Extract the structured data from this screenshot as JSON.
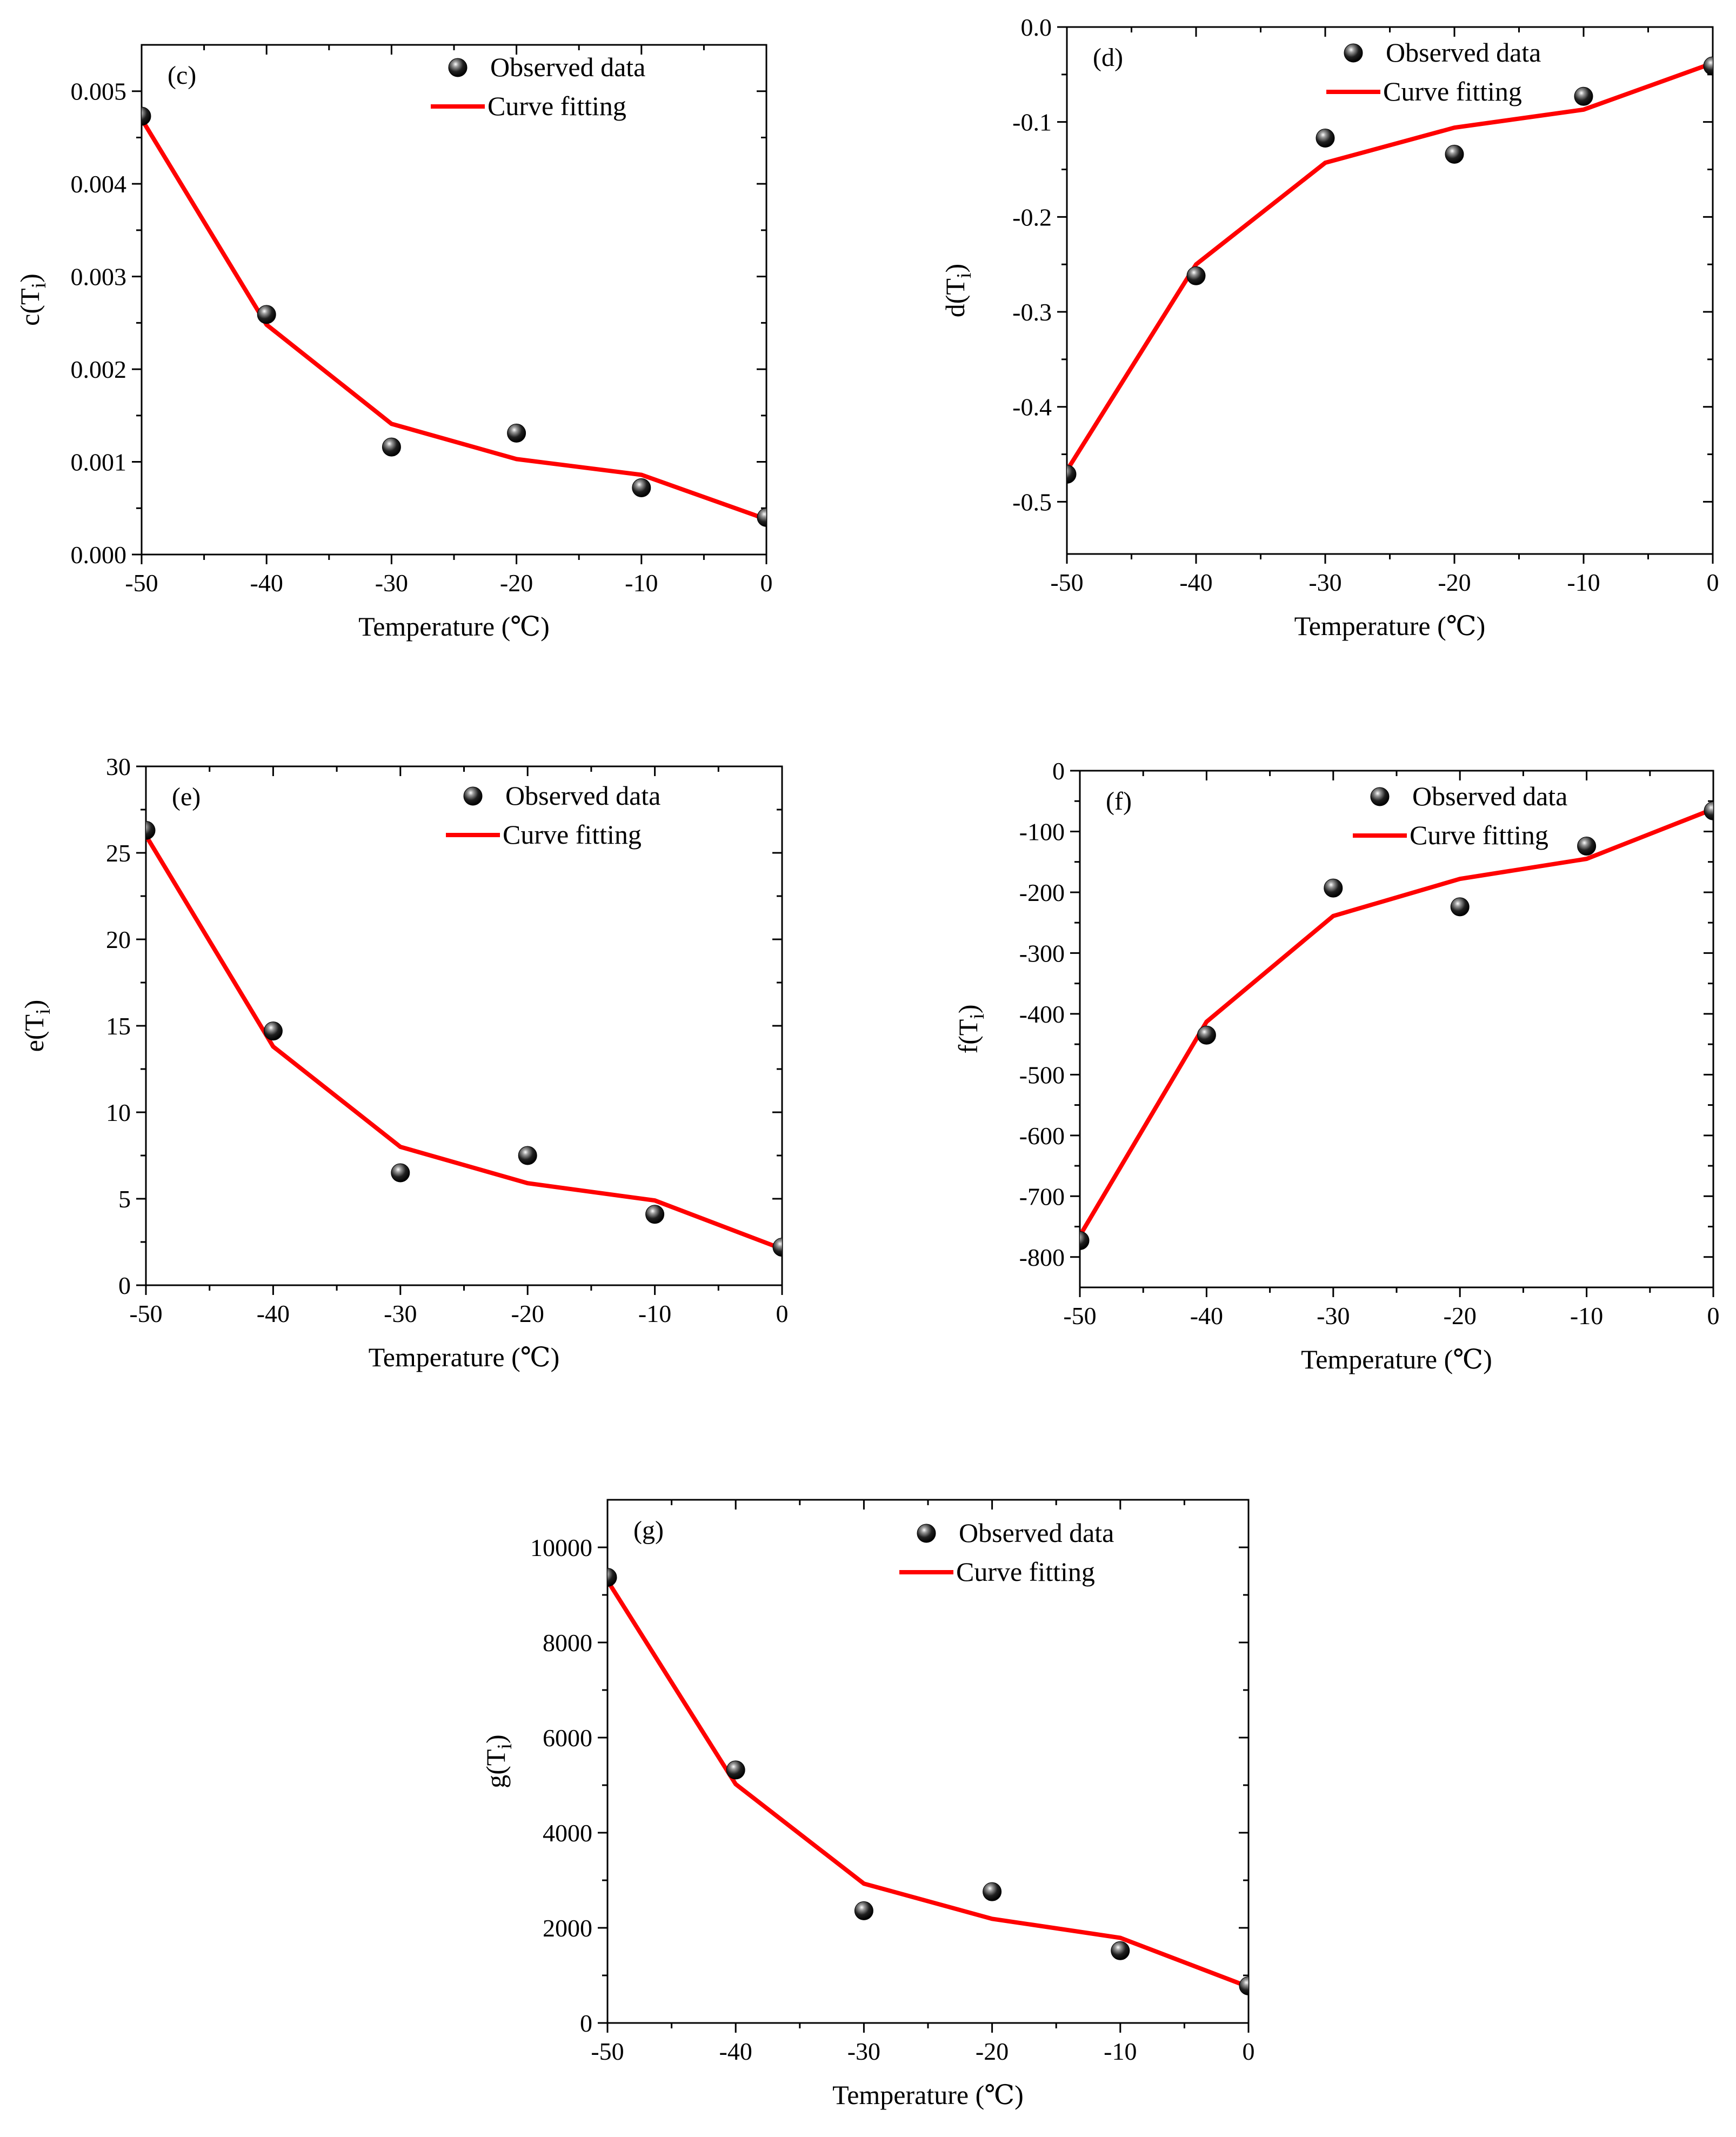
{
  "chart_data": [
    {
      "type": "line",
      "panel_label": "(c)",
      "ylabel_base": "c(T",
      "ylabel_sub": "i",
      "ylabel_close": ")",
      "xlabel": "Temperature (℃)",
      "xlim": [
        -50,
        0
      ],
      "ylim": [
        0,
        0.0055
      ],
      "x_ticks": [
        -50,
        -40,
        -30,
        -20,
        -10,
        0
      ],
      "x_tick_labels": [
        "-50",
        "-40",
        "-30",
        "-20",
        "-10",
        "0"
      ],
      "y_ticks": [
        0,
        0.001,
        0.002,
        0.003,
        0.004,
        0.005
      ],
      "y_tick_labels": [
        "0.000",
        "0.001",
        "0.002",
        "0.003",
        "0.004",
        "0.005"
      ],
      "legend": [
        "Observed data",
        "Curve fitting"
      ],
      "series": [
        {
          "name": "Observed data",
          "kind": "scatter",
          "x": [
            -50,
            -40,
            -30,
            -20,
            -10,
            0
          ],
          "y": [
            0.00473,
            0.00259,
            0.00116,
            0.00131,
            0.00072,
            0.0004
          ]
        },
        {
          "name": "Curve fitting",
          "kind": "line",
          "color": "#ff0000",
          "x": [
            -50,
            -40,
            -30,
            -20,
            -10,
            0
          ],
          "y": [
            0.0047,
            0.00248,
            0.00141,
            0.00103,
            0.00086,
            0.00038
          ]
        }
      ]
    },
    {
      "type": "line",
      "panel_label": "(d)",
      "ylabel_base": "d(T",
      "ylabel_sub": "i",
      "ylabel_close": ")",
      "xlabel": "Temperature (℃)",
      "xlim": [
        -50,
        0
      ],
      "ylim": [
        -0.555,
        0
      ],
      "x_ticks": [
        -50,
        -40,
        -30,
        -20,
        -10,
        0
      ],
      "x_tick_labels": [
        "-50",
        "-40",
        "-30",
        "-20",
        "-10",
        "0"
      ],
      "y_ticks": [
        0,
        -0.1,
        -0.2,
        -0.3,
        -0.4,
        -0.5
      ],
      "y_tick_labels": [
        "0.0",
        "-0.1",
        "-0.2",
        "-0.3",
        "-0.4",
        "-0.5"
      ],
      "legend": [
        "Observed data",
        "Curve fitting"
      ],
      "series": [
        {
          "name": "Observed data",
          "kind": "scatter",
          "x": [
            -50,
            -40,
            -30,
            -20,
            -10,
            0
          ],
          "y": [
            -0.471,
            -0.262,
            -0.117,
            -0.134,
            -0.073,
            -0.041
          ]
        },
        {
          "name": "Curve fitting",
          "kind": "line",
          "color": "#ff0000",
          "x": [
            -50,
            -40,
            -30,
            -20,
            -10,
            0
          ],
          "y": [
            -0.467,
            -0.25,
            -0.143,
            -0.106,
            -0.087,
            -0.038
          ]
        }
      ]
    },
    {
      "type": "line",
      "panel_label": "(e)",
      "ylabel_base": "e(T",
      "ylabel_sub": "i",
      "ylabel_close": ")",
      "xlabel": "Temperature (℃)",
      "xlim": [
        -50,
        0
      ],
      "ylim": [
        0,
        30
      ],
      "x_ticks": [
        -50,
        -40,
        -30,
        -20,
        -10,
        0
      ],
      "x_tick_labels": [
        "-50",
        "-40",
        "-30",
        "-20",
        "-10",
        "0"
      ],
      "y_ticks": [
        0,
        5,
        10,
        15,
        20,
        25,
        30
      ],
      "y_tick_labels": [
        "0",
        "5",
        "10",
        "15",
        "20",
        "25",
        "30"
      ],
      "legend": [
        "Observed data",
        "Curve fitting"
      ],
      "series": [
        {
          "name": "Observed data",
          "kind": "scatter",
          "x": [
            -50,
            -40,
            -30,
            -20,
            -10,
            0
          ],
          "y": [
            26.3,
            14.7,
            6.5,
            7.5,
            4.1,
            2.2
          ]
        },
        {
          "name": "Curve fitting",
          "kind": "line",
          "color": "#ff0000",
          "x": [
            -50,
            -40,
            -30,
            -20,
            -10,
            0
          ],
          "y": [
            26.0,
            13.8,
            8.0,
            5.9,
            4.9,
            2.1
          ]
        }
      ]
    },
    {
      "type": "line",
      "panel_label": "(f)",
      "ylabel_base": "f(T",
      "ylabel_sub": "i",
      "ylabel_close": ")",
      "xlabel": "Temperature (℃)",
      "xlim": [
        -50,
        0
      ],
      "ylim": [
        -850,
        0
      ],
      "x_ticks": [
        -50,
        -40,
        -30,
        -20,
        -10,
        0
      ],
      "x_tick_labels": [
        "-50",
        "-40",
        "-30",
        "-20",
        "-10",
        "0"
      ],
      "y_ticks": [
        0,
        -100,
        -200,
        -300,
        -400,
        -500,
        -600,
        -700,
        -800
      ],
      "y_tick_labels": [
        "0",
        "-100",
        "-200",
        "-300",
        "-400",
        "-500",
        "-600",
        "-700",
        "-800"
      ],
      "legend": [
        "Observed data",
        "Curve fitting"
      ],
      "series": [
        {
          "name": "Observed data",
          "kind": "scatter",
          "x": [
            -50,
            -40,
            -30,
            -20,
            -10,
            0
          ],
          "y": [
            -773,
            -435,
            -193,
            -224,
            -124,
            -66
          ]
        },
        {
          "name": "Curve fitting",
          "kind": "line",
          "color": "#ff0000",
          "x": [
            -50,
            -40,
            -30,
            -20,
            -10,
            0
          ],
          "y": [
            -765,
            -413,
            -239,
            -178,
            -145,
            -63
          ]
        }
      ]
    },
    {
      "type": "line",
      "panel_label": "(g)",
      "ylabel_base": "g(T",
      "ylabel_sub": "i",
      "ylabel_close": ")",
      "xlabel": "Temperature (℃)",
      "xlim": [
        -50,
        0
      ],
      "ylim": [
        0,
        11000
      ],
      "x_ticks": [
        -50,
        -40,
        -30,
        -20,
        -10,
        0
      ],
      "x_tick_labels": [
        "-50",
        "-40",
        "-30",
        "-20",
        "-10",
        "0"
      ],
      "y_ticks": [
        0,
        2000,
        4000,
        6000,
        8000,
        10000
      ],
      "y_tick_labels": [
        "0",
        "2000",
        "4000",
        "6000",
        "8000",
        "10000"
      ],
      "legend": [
        "Observed data",
        "Curve fitting"
      ],
      "series": [
        {
          "name": "Observed data",
          "kind": "scatter",
          "x": [
            -50,
            -40,
            -30,
            -20,
            -10,
            0
          ],
          "y": [
            9370,
            5320,
            2360,
            2760,
            1520,
            780
          ]
        },
        {
          "name": "Curve fitting",
          "kind": "line",
          "color": "#ff0000",
          "x": [
            -50,
            -40,
            -30,
            -20,
            -10,
            0
          ],
          "y": [
            9300,
            5020,
            2930,
            2190,
            1790,
            760
          ]
        }
      ]
    }
  ]
}
